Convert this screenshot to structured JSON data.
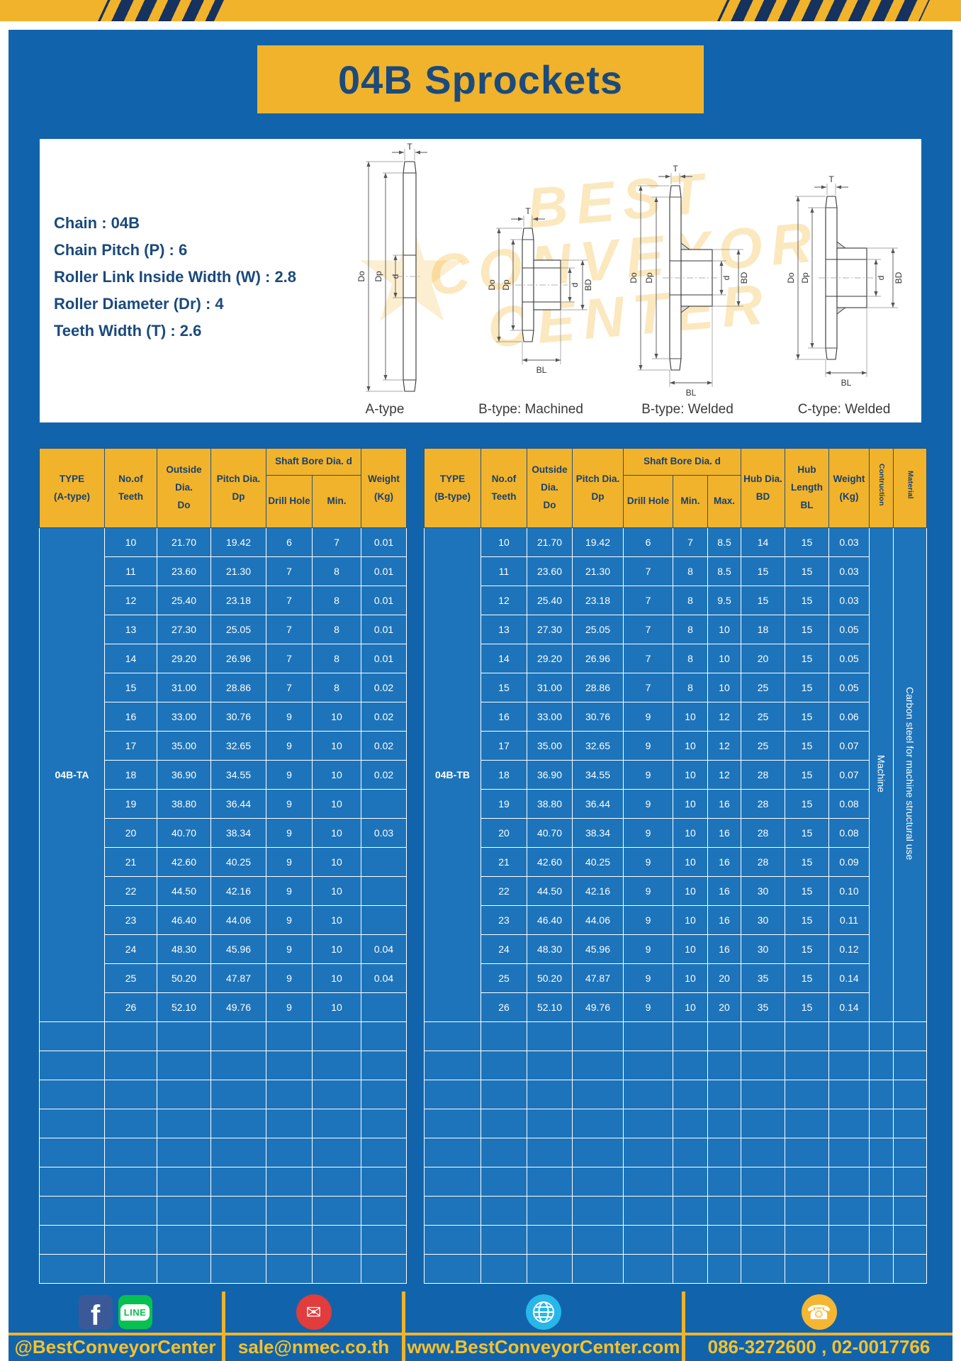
{
  "page": {
    "title": "04B Sprockets"
  },
  "colors": {
    "panel_blue": "#1164ab",
    "table_row_blue": "#1d74ba",
    "gold": "#f1b32b",
    "navy_text": "#17406f",
    "footer_text_gold": "#f7c12d"
  },
  "specs": {
    "lines": [
      "Chain : 04B",
      "Chain Pitch (P) : 6",
      "Roller Link Inside Width (W) : 2.8",
      "Roller Diameter (Dr) : 4",
      "Teeth Width (T) : 2.6"
    ]
  },
  "diagrams": {
    "watermark_lines": [
      "BEST",
      "CONVEYOR",
      "CENTER"
    ],
    "logo_glyph": "★",
    "dims": {
      "t": "T",
      "do": "Do",
      "dp": "Dp",
      "d": "d",
      "bd": "BD",
      "bl": "BL"
    },
    "labels": [
      "A-type",
      "B-type: Machined",
      "B-type: Welded",
      "C-type: Welded"
    ]
  },
  "table_a": {
    "headers": {
      "type": "TYPE\n(A-type)",
      "teeth": "No.of\nTeeth",
      "outside": "Outside\nDia.\nDo",
      "pitch": "Pitch Dia.\nDp",
      "shaft_bore": "Shaft Bore Dia. d",
      "drill": "Drill Hole",
      "min": "Min.",
      "weight": "Weight\n(Kg)"
    },
    "type_label": "04B-TA",
    "rows": [
      [
        "10",
        "21.70",
        "19.42",
        "6",
        "7",
        "0.01"
      ],
      [
        "11",
        "23.60",
        "21.30",
        "7",
        "8",
        "0.01"
      ],
      [
        "12",
        "25.40",
        "23.18",
        "7",
        "8",
        "0.01"
      ],
      [
        "13",
        "27.30",
        "25.05",
        "7",
        "8",
        "0.01"
      ],
      [
        "14",
        "29.20",
        "26.96",
        "7",
        "8",
        "0.01"
      ],
      [
        "15",
        "31.00",
        "28.86",
        "7",
        "8",
        "0.02"
      ],
      [
        "16",
        "33.00",
        "30.76",
        "9",
        "10",
        "0.02"
      ],
      [
        "17",
        "35.00",
        "32.65",
        "9",
        "10",
        "0.02"
      ],
      [
        "18",
        "36.90",
        "34.55",
        "9",
        "10",
        "0.02"
      ],
      [
        "19",
        "38.80",
        "36.44",
        "9",
        "10",
        ""
      ],
      [
        "20",
        "40.70",
        "38.34",
        "9",
        "10",
        "0.03"
      ],
      [
        "21",
        "42.60",
        "40.25",
        "9",
        "10",
        ""
      ],
      [
        "22",
        "44.50",
        "42.16",
        "9",
        "10",
        ""
      ],
      [
        "23",
        "46.40",
        "44.06",
        "9",
        "10",
        ""
      ],
      [
        "24",
        "48.30",
        "45.96",
        "9",
        "10",
        "0.04"
      ],
      [
        "25",
        "50.20",
        "47.87",
        "9",
        "10",
        "0.04"
      ],
      [
        "26",
        "52.10",
        "49.76",
        "9",
        "10",
        ""
      ]
    ],
    "empty_rows": 9
  },
  "table_b": {
    "headers": {
      "type": "TYPE\n(B-type)",
      "teeth": "No.of\nTeeth",
      "outside": "Outside\nDia.\nDo",
      "pitch": "Pitch Dia.\nDp",
      "shaft_bore": "Shaft Bore Dia. d",
      "drill": "Drill Hole",
      "min": "Min.",
      "max": "Max.",
      "hub_dia": "Hub Dia.\nBD",
      "hub_length": "Hub\nLength\nBL",
      "weight": "Weight\n(Kg)",
      "construction": "Contruction",
      "material": "Material"
    },
    "type_label": "04B-TB",
    "construction_value": "Machine",
    "material_value": "Carbon steel for machine structural use",
    "rows": [
      [
        "10",
        "21.70",
        "19.42",
        "6",
        "7",
        "8.5",
        "14",
        "15",
        "0.03"
      ],
      [
        "11",
        "23.60",
        "21.30",
        "7",
        "8",
        "8.5",
        "15",
        "15",
        "0.03"
      ],
      [
        "12",
        "25.40",
        "23.18",
        "7",
        "8",
        "9.5",
        "15",
        "15",
        "0.03"
      ],
      [
        "13",
        "27.30",
        "25.05",
        "7",
        "8",
        "10",
        "18",
        "15",
        "0.05"
      ],
      [
        "14",
        "29.20",
        "26.96",
        "7",
        "8",
        "10",
        "20",
        "15",
        "0.05"
      ],
      [
        "15",
        "31.00",
        "28.86",
        "7",
        "8",
        "10",
        "25",
        "15",
        "0.05"
      ],
      [
        "16",
        "33.00",
        "30.76",
        "9",
        "10",
        "12",
        "25",
        "15",
        "0.06"
      ],
      [
        "17",
        "35.00",
        "32.65",
        "9",
        "10",
        "12",
        "25",
        "15",
        "0.07"
      ],
      [
        "18",
        "36.90",
        "34.55",
        "9",
        "10",
        "12",
        "28",
        "15",
        "0.07"
      ],
      [
        "19",
        "38.80",
        "36.44",
        "9",
        "10",
        "16",
        "28",
        "15",
        "0.08"
      ],
      [
        "20",
        "40.70",
        "38.34",
        "9",
        "10",
        "16",
        "28",
        "15",
        "0.08"
      ],
      [
        "21",
        "42.60",
        "40.25",
        "9",
        "10",
        "16",
        "28",
        "15",
        "0.09"
      ],
      [
        "22",
        "44.50",
        "42.16",
        "9",
        "10",
        "16",
        "30",
        "15",
        "0.10"
      ],
      [
        "23",
        "46.40",
        "44.06",
        "9",
        "10",
        "16",
        "30",
        "15",
        "0.11"
      ],
      [
        "24",
        "48.30",
        "45.96",
        "9",
        "10",
        "16",
        "30",
        "15",
        "0.12"
      ],
      [
        "25",
        "50.20",
        "47.87",
        "9",
        "10",
        "20",
        "35",
        "15",
        "0.14"
      ],
      [
        "26",
        "52.10",
        "49.76",
        "9",
        "10",
        "20",
        "35",
        "15",
        "0.14"
      ]
    ],
    "empty_rows": 9
  },
  "footer": {
    "facebook_letter": "f",
    "line_label": "LINE",
    "email_glyph": "✉",
    "phone_glyph": "☎",
    "social_handle": "@BestConveyorCenter",
    "email": "sale@nmec.co.th",
    "website": "www.BestConveyorCenter.com",
    "phone": "086-3272600 , 02-0017766"
  }
}
